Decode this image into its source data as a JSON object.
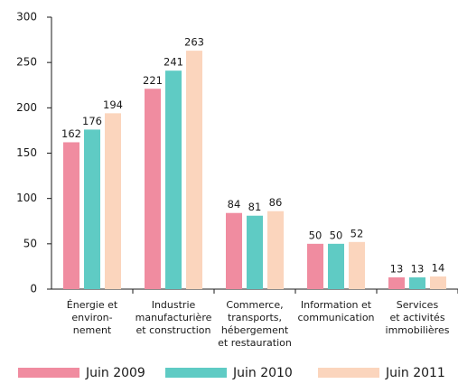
{
  "chart_data": {
    "type": "bar",
    "categories": [
      [
        "Énergie et",
        "environ-",
        "nement"
      ],
      [
        "Industrie",
        "manufacturière",
        "et construction"
      ],
      [
        "Commerce,",
        "transports,",
        "hébergement",
        "et restauration"
      ],
      [
        "Information et",
        "communication"
      ],
      [
        "Services",
        "et activités",
        "immobilières"
      ]
    ],
    "series": [
      {
        "name": "Juin 2009",
        "color": "#f08ca0",
        "values": [
          162,
          221,
          84,
          50,
          13
        ]
      },
      {
        "name": "Juin 2010",
        "color": "#5fcbc4",
        "values": [
          176,
          241,
          81,
          50,
          13
        ]
      },
      {
        "name": "Juin 2011",
        "color": "#fbd5bd",
        "values": [
          194,
          263,
          86,
          52,
          14
        ]
      }
    ],
    "ylim": [
      0,
      300
    ],
    "yticks": [
      0,
      50,
      100,
      150,
      200,
      250,
      300
    ],
    "grid": false,
    "legend": "bottom"
  }
}
